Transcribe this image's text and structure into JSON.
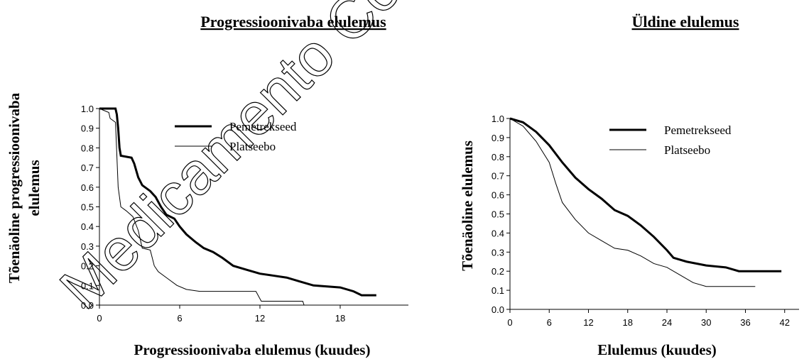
{
  "watermark": "Medicamento Co",
  "chart_data": [
    {
      "type": "line",
      "title": "Progressioonivaba elulemus",
      "xlabel": "Progressioonivaba elulemus (kuudes)",
      "ylabel": [
        "Tõenäoline progressioonivaba",
        "elulemus"
      ],
      "xlim": [
        0,
        23.1
      ],
      "ylim": [
        0,
        1
      ],
      "xticks": [
        0,
        6,
        12,
        18
      ],
      "yticks": [
        {
          "value": 0,
          "label": "0.0"
        },
        0.1,
        0.2,
        0.3,
        0.4,
        0.5,
        0.6,
        0.7,
        0.8,
        0.9,
        {
          "value": 1,
          "label": "1.0"
        }
      ],
      "legend": "upper right",
      "series": [
        {
          "name": "Pemetrekseed",
          "color": "#000000",
          "line_width": 3,
          "x": [
            0,
            1.2,
            1.3,
            1.4,
            1.5,
            1.6,
            2.4,
            2.6,
            2.9,
            3.2,
            3.8,
            4.2,
            4.6,
            5.0,
            5.6,
            6.0,
            6.5,
            7.2,
            7.8,
            8.5,
            9.2,
            10,
            11,
            12,
            13,
            14,
            15,
            16,
            18,
            19,
            19.6,
            20.7
          ],
          "values": [
            1.0,
            1.0,
            0.97,
            0.9,
            0.8,
            0.76,
            0.75,
            0.72,
            0.65,
            0.61,
            0.58,
            0.55,
            0.5,
            0.46,
            0.44,
            0.4,
            0.36,
            0.32,
            0.29,
            0.27,
            0.24,
            0.2,
            0.18,
            0.16,
            0.15,
            0.14,
            0.12,
            0.1,
            0.09,
            0.07,
            0.05,
            0.05
          ]
        },
        {
          "name": "Platseebo",
          "color": "#000000",
          "line_width": 1,
          "x": [
            0,
            0.7,
            0.8,
            1.2,
            1.4,
            1.6,
            2.0,
            2.5,
            2.9,
            3.2,
            3.8,
            4.1,
            4.4,
            5.2,
            5.8,
            6.5,
            7.5,
            11.7,
            12.1,
            15.2,
            15.3
          ],
          "values": [
            1.0,
            0.98,
            0.95,
            0.93,
            0.6,
            0.5,
            0.48,
            0.45,
            0.38,
            0.29,
            0.28,
            0.2,
            0.17,
            0.13,
            0.1,
            0.08,
            0.07,
            0.07,
            0.02,
            0.02,
            0.0
          ]
        }
      ]
    },
    {
      "type": "line",
      "title": "Üldine elulemus",
      "xlabel": "Elulemus (kuudes)",
      "ylabel": [
        "Tõenäoline elulemus"
      ],
      "xlim": [
        0,
        44.2
      ],
      "ylim": [
        0,
        1
      ],
      "xticks": [
        0,
        6,
        12,
        18,
        24,
        30,
        36,
        42
      ],
      "yticks": [
        {
          "value": 0,
          "label": "0.0"
        },
        0.1,
        0.2,
        0.3,
        0.4,
        0.5,
        0.6,
        0.7,
        0.8,
        0.9,
        {
          "value": 1,
          "label": "1.0"
        }
      ],
      "legend": "upper right",
      "series": [
        {
          "name": "Pemetrekseed",
          "color": "#000000",
          "line_width": 3,
          "x": [
            0,
            2,
            4,
            6,
            8,
            10,
            12,
            14,
            16,
            18,
            20,
            22,
            24,
            25,
            27,
            30,
            33,
            35,
            41.5
          ],
          "values": [
            1.0,
            0.98,
            0.93,
            0.86,
            0.77,
            0.69,
            0.63,
            0.58,
            0.52,
            0.49,
            0.44,
            0.38,
            0.31,
            0.27,
            0.25,
            0.23,
            0.22,
            0.2,
            0.2
          ]
        },
        {
          "name": "Platseebo",
          "color": "#000000",
          "line_width": 1,
          "x": [
            0,
            2,
            4,
            6,
            7,
            8,
            10,
            12,
            14,
            16,
            18,
            20,
            22,
            24,
            26,
            28,
            30,
            32,
            37.5
          ],
          "values": [
            1.0,
            0.96,
            0.88,
            0.77,
            0.66,
            0.56,
            0.47,
            0.4,
            0.36,
            0.32,
            0.31,
            0.28,
            0.24,
            0.22,
            0.18,
            0.14,
            0.12,
            0.12,
            0.12
          ]
        }
      ]
    }
  ]
}
